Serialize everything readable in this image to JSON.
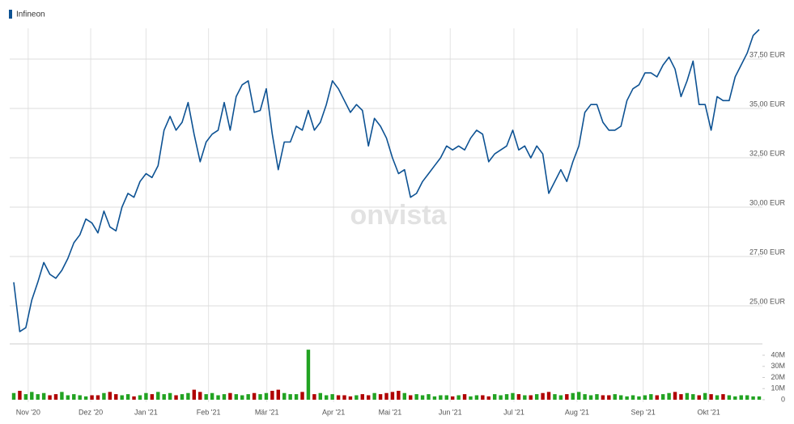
{
  "chart_data": [
    {
      "type": "line",
      "watermark": "onvista",
      "series": [
        {
          "name": "Infineon",
          "color": "#0d5293",
          "values": [
            26.2,
            23.7,
            23.9,
            25.3,
            26.2,
            27.2,
            26.6,
            26.4,
            26.8,
            27.4,
            28.2,
            28.6,
            29.4,
            29.2,
            28.7,
            29.8,
            29.0,
            28.8,
            30.0,
            30.7,
            30.5,
            31.3,
            31.7,
            31.5,
            32.1,
            33.9,
            34.6,
            33.9,
            34.3,
            35.3,
            33.7,
            32.3,
            33.3,
            33.7,
            33.9,
            35.3,
            33.9,
            35.6,
            36.2,
            36.4,
            34.8,
            34.9,
            36.0,
            33.7,
            31.9,
            33.3,
            33.3,
            34.1,
            33.9,
            34.9,
            33.9,
            34.3,
            35.2,
            36.4,
            36.0,
            35.4,
            34.8,
            35.2,
            34.9,
            33.1,
            34.5,
            34.1,
            33.5,
            32.5,
            31.7,
            31.9,
            30.5,
            30.7,
            31.3,
            31.7,
            32.1,
            32.5,
            33.1,
            32.9,
            33.1,
            32.9,
            33.5,
            33.9,
            33.7,
            32.3,
            32.7,
            32.9,
            33.1,
            33.9,
            32.9,
            33.1,
            32.5,
            33.1,
            32.7,
            30.7,
            31.3,
            31.9,
            31.3,
            32.3,
            33.1,
            34.8,
            35.2,
            35.2,
            34.3,
            33.9,
            33.9,
            34.1,
            35.4,
            36.0,
            36.2,
            36.8,
            36.8,
            36.6,
            37.2,
            37.6,
            37.0,
            35.6,
            36.4,
            37.4,
            35.2,
            35.2,
            33.9,
            35.6,
            35.4,
            35.4,
            36.6,
            37.2,
            37.8,
            38.7,
            39.0
          ]
        }
      ],
      "xlim": [
        0,
        124
      ],
      "xticks": [
        {
          "value": 2.4,
          "label": "Nov '20"
        },
        {
          "value": 12.8,
          "label": "Dez '20"
        },
        {
          "value": 22.0,
          "label": "Jan '21"
        },
        {
          "value": 32.4,
          "label": "Feb '21"
        },
        {
          "value": 42.1,
          "label": "Mär '21"
        },
        {
          "value": 53.2,
          "label": "Apr '21"
        },
        {
          "value": 62.6,
          "label": "Mai '21"
        },
        {
          "value": 72.6,
          "label": "Jun '21"
        },
        {
          "value": 83.2,
          "label": "Jul '21"
        },
        {
          "value": 93.7,
          "label": "Aug '21"
        },
        {
          "value": 104.7,
          "label": "Sep '21"
        },
        {
          "value": 115.6,
          "label": "Okt '21"
        }
      ],
      "ylim": [
        23.28,
        39.06
      ],
      "yticks": [
        {
          "value": 25,
          "label": "25,00 EUR"
        },
        {
          "value": 27.5,
          "label": "27,50 EUR"
        },
        {
          "value": 30,
          "label": "30,00 EUR"
        },
        {
          "value": 32.5,
          "label": "32,50 EUR"
        },
        {
          "value": 35,
          "label": "35,00 EUR"
        },
        {
          "value": 37.5,
          "label": "37,50 EUR"
        }
      ],
      "grid": true
    },
    {
      "type": "bar",
      "up_color": "#22a322",
      "down_color": "#b00000",
      "values": [
        6,
        8,
        5,
        7,
        5,
        6,
        4,
        5,
        7,
        4,
        5,
        4,
        3,
        4,
        4,
        6,
        7,
        5,
        4,
        5,
        3,
        4,
        6,
        5,
        7,
        5,
        6,
        4,
        5,
        6,
        9,
        7,
        5,
        6,
        4,
        5,
        6,
        5,
        4,
        5,
        6,
        5,
        6,
        8,
        9,
        6,
        5,
        5,
        7,
        45,
        5,
        6,
        4,
        5,
        4,
        4,
        3,
        4,
        5,
        4,
        6,
        5,
        6,
        7,
        8,
        6,
        4,
        5,
        4,
        5,
        3,
        4,
        4,
        3,
        4,
        5,
        3,
        4,
        4,
        3,
        5,
        4,
        5,
        6,
        5,
        4,
        4,
        5,
        6,
        7,
        5,
        4,
        5,
        6,
        7,
        5,
        4,
        5,
        4,
        4,
        5,
        4,
        3,
        4,
        3,
        4,
        5,
        4,
        5,
        6,
        7,
        5,
        6,
        5,
        4,
        6,
        5,
        4,
        5,
        4,
        3,
        4,
        4,
        3,
        3
      ],
      "ylim": [
        -2.2,
        50.2
      ],
      "yticks": [
        0,
        {
          "value": 10,
          "label": "10M"
        },
        {
          "value": 20,
          "label": "20M"
        },
        {
          "value": 30,
          "label": "30M"
        },
        {
          "value": 40,
          "label": "40M"
        }
      ]
    }
  ]
}
